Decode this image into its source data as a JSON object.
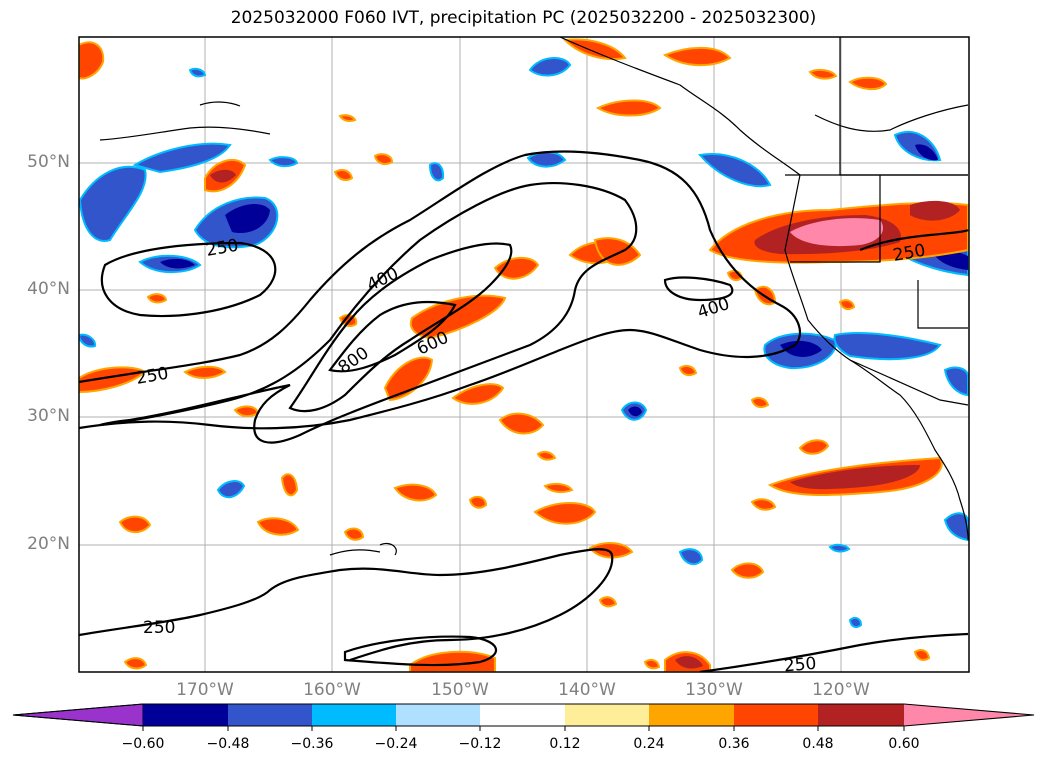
{
  "title": "2025032000 F060 IVT, precipitation PC (2025032200 - 2025032300)",
  "latitude_labels": [
    "50°N",
    "40°N",
    "30°N",
    "20°N"
  ],
  "longitude_labels": [
    "170°W",
    "160°W",
    "150°W",
    "140°W",
    "130°W",
    "120°W"
  ],
  "contour_labels": [
    "250",
    "250",
    "400",
    "800",
    "600",
    "400",
    "250",
    "250",
    "250"
  ],
  "colorbar": {
    "ticks": [
      "-0.60",
      "-0.48",
      "-0.36",
      "-0.24",
      "-0.12",
      "0.12",
      "0.24",
      "0.36",
      "0.48",
      "0.60"
    ],
    "colors": [
      "#9933cc",
      "#000099",
      "#3355cc",
      "#00bbff",
      "#b0e0ff",
      "#ffffff",
      "#ffee99",
      "#ffa500",
      "#ff4500",
      "#b22222",
      "#ff88aa"
    ]
  }
}
